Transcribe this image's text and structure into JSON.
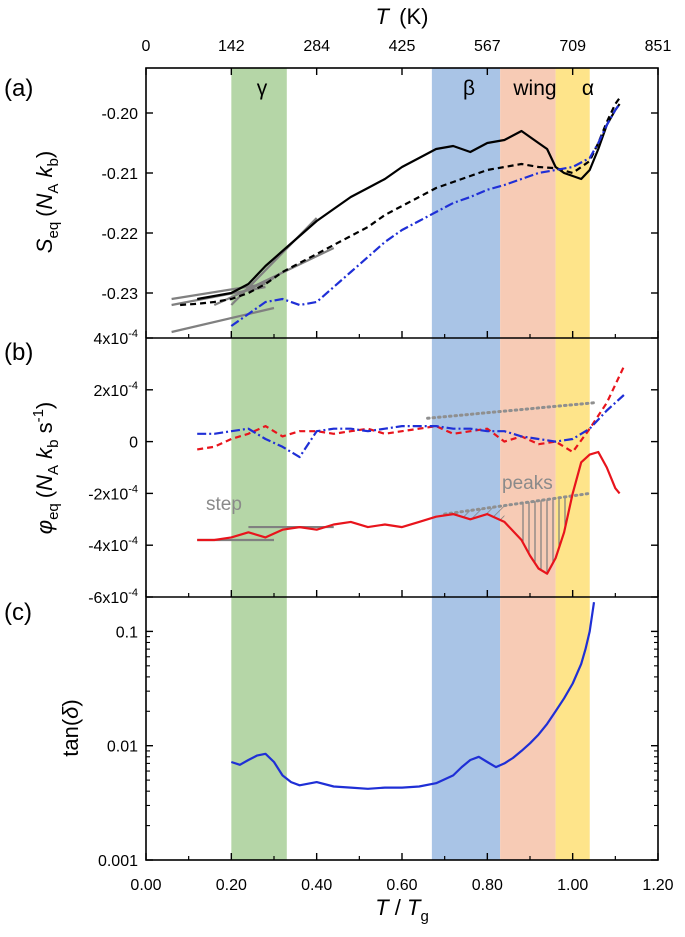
{
  "chart_data": {
    "type": "line",
    "shared_x": {
      "label_main": "T",
      "label_sep": " / ",
      "label_sub_main": "T",
      "label_sub": "g",
      "range": [
        0.0,
        1.2
      ],
      "ticks": [
        0.0,
        0.2,
        0.4,
        0.6,
        0.8,
        1.0,
        1.2
      ],
      "tick_labels": [
        "0.00",
        "0.20",
        "0.40",
        "0.60",
        "0.80",
        "1.00",
        "1.20"
      ]
    },
    "top_axis": {
      "label": "T",
      "unit": "(K)",
      "tick_values": [
        0.0,
        0.2,
        0.4,
        0.6,
        0.8,
        1.0,
        1.2
      ],
      "tick_labels": [
        "0",
        "142",
        "284",
        "425",
        "567",
        "709",
        "851"
      ]
    },
    "bands": [
      {
        "name": "gamma",
        "label": "γ",
        "from": 0.2,
        "to": 0.33,
        "color": "#b5d6a7"
      },
      {
        "name": "beta",
        "label": "β",
        "from": 0.67,
        "to": 0.83,
        "color": "#a9c4e6"
      },
      {
        "name": "wing",
        "label": "wing",
        "from": 0.83,
        "to": 0.96,
        "color": "#f7cbb5"
      },
      {
        "name": "alpha",
        "label": "α",
        "from": 0.96,
        "to": 1.04,
        "color": "#fee48a"
      }
    ],
    "panels": [
      {
        "id": "a",
        "label": "(a)",
        "ylabel": {
          "main": "S",
          "sub": "eq",
          "units": [
            "(",
            "N",
            "A",
            " k",
            "b",
            ")"
          ]
        },
        "ylim": [
          -0.2375,
          -0.1925
        ],
        "yticks": [
          -0.23,
          -0.22,
          -0.21,
          -0.2
        ],
        "ytick_labels": [
          "-0.23",
          "-0.22",
          "-0.21",
          "-0.20"
        ],
        "series": [
          {
            "name": "solid black",
            "color": "#000000",
            "style": "solid",
            "x": [
              0.12,
              0.16,
              0.2,
              0.24,
              0.28,
              0.32,
              0.36,
              0.4,
              0.44,
              0.48,
              0.52,
              0.56,
              0.6,
              0.64,
              0.68,
              0.72,
              0.76,
              0.8,
              0.84,
              0.88,
              0.9,
              0.92,
              0.94,
              0.96,
              0.98,
              1.0,
              1.02,
              1.04,
              1.06,
              1.08,
              1.1,
              1.11
            ],
            "y": [
              -0.231,
              -0.2305,
              -0.23,
              -0.2285,
              -0.2255,
              -0.223,
              -0.2205,
              -0.218,
              -0.216,
              -0.214,
              -0.2125,
              -0.211,
              -0.209,
              -0.2075,
              -0.206,
              -0.2055,
              -0.2065,
              -0.205,
              -0.2045,
              -0.203,
              -0.204,
              -0.205,
              -0.206,
              -0.209,
              -0.21,
              -0.2105,
              -0.211,
              -0.2095,
              -0.206,
              -0.202,
              -0.1995,
              -0.1985
            ]
          },
          {
            "name": "dashed black",
            "color": "#000000",
            "style": "dashed",
            "x": [
              0.08,
              0.12,
              0.16,
              0.2,
              0.24,
              0.28,
              0.32,
              0.36,
              0.4,
              0.44,
              0.48,
              0.52,
              0.56,
              0.6,
              0.64,
              0.68,
              0.72,
              0.76,
              0.8,
              0.84,
              0.88,
              0.92,
              0.96,
              1.0,
              1.04,
              1.06,
              1.08,
              1.1,
              1.11
            ],
            "y": [
              -0.232,
              -0.2318,
              -0.2315,
              -0.231,
              -0.23,
              -0.2285,
              -0.2265,
              -0.225,
              -0.2235,
              -0.222,
              -0.2205,
              -0.219,
              -0.217,
              -0.2155,
              -0.214,
              -0.2125,
              -0.2115,
              -0.2105,
              -0.2095,
              -0.209,
              -0.2085,
              -0.209,
              -0.2092,
              -0.21,
              -0.208,
              -0.205,
              -0.2015,
              -0.1985,
              -0.1975
            ]
          },
          {
            "name": "dash-dot blue",
            "color": "#1f2fd6",
            "style": "dashdot",
            "x": [
              0.2,
              0.24,
              0.28,
              0.32,
              0.36,
              0.4,
              0.44,
              0.48,
              0.52,
              0.56,
              0.6,
              0.64,
              0.68,
              0.72,
              0.76,
              0.8,
              0.84,
              0.88,
              0.92,
              0.96,
              1.0,
              1.04,
              1.06,
              1.08,
              1.1,
              1.11
            ],
            "y": [
              -0.2355,
              -0.2335,
              -0.2315,
              -0.231,
              -0.232,
              -0.2315,
              -0.229,
              -0.2265,
              -0.224,
              -0.2215,
              -0.2195,
              -0.218,
              -0.2165,
              -0.215,
              -0.214,
              -0.2128,
              -0.212,
              -0.211,
              -0.21,
              -0.2095,
              -0.209,
              -0.2075,
              -0.205,
              -0.202,
              -0.1995,
              -0.1985
            ]
          }
        ],
        "guide_lines": [
          {
            "x": [
              0.06,
              0.28
            ],
            "y": [
              -0.231,
              -0.2285
            ]
          },
          {
            "x": [
              0.06,
              0.28
            ],
            "y": [
              -0.232,
              -0.229
            ]
          },
          {
            "x": [
              0.06,
              0.3
            ],
            "y": [
              -0.2365,
              -0.2325
            ]
          },
          {
            "x": [
              0.16,
              0.3
            ],
            "y": [
              -0.232,
              -0.2275
            ]
          },
          {
            "x": [
              0.22,
              0.44
            ],
            "y": [
              -0.23,
              -0.2225
            ]
          },
          {
            "x": [
              0.2,
              0.4
            ],
            "y": [
              -0.232,
              -0.2175
            ]
          }
        ]
      },
      {
        "id": "b",
        "label": "(b)",
        "ylabel": {
          "main": "φ",
          "sub": "eq",
          "units": [
            "(",
            "N",
            "A",
            " k",
            "b",
            " s",
            "-1",
            ")"
          ]
        },
        "ylim": [
          -0.0006,
          0.0004
        ],
        "yticks": [
          -0.0006,
          -0.0004,
          -0.0002,
          0.0,
          0.0002,
          0.0004
        ],
        "ytick_labels": [
          [
            "-6x10",
            "-4"
          ],
          [
            "-4x10",
            "-4"
          ],
          [
            "-2x10",
            "-4"
          ],
          [
            "0",
            ""
          ],
          [
            "2x10",
            "-4"
          ],
          [
            "4x10",
            "-4"
          ]
        ],
        "series": [
          {
            "name": "dashed red",
            "color": "#e8141c",
            "style": "dashed",
            "x": [
              0.12,
              0.16,
              0.2,
              0.24,
              0.28,
              0.32,
              0.36,
              0.4,
              0.44,
              0.48,
              0.52,
              0.56,
              0.6,
              0.64,
              0.68,
              0.72,
              0.76,
              0.8,
              0.84,
              0.88,
              0.92,
              0.96,
              1.0,
              1.04,
              1.08,
              1.12
            ],
            "y": [
              -3e-05,
              -2e-05,
              1e-05,
              3e-05,
              6e-05,
              2e-05,
              4e-05,
              4e-05,
              3e-05,
              4e-05,
              5e-05,
              3e-05,
              4e-05,
              5e-05,
              6e-05,
              3e-05,
              4e-05,
              5e-05,
              0.0,
              2e-05,
              -1e-05,
              0.0,
              -4e-05,
              5e-05,
              0.00015,
              0.00029
            ]
          },
          {
            "name": "dash-dot blue",
            "color": "#1f2fd6",
            "style": "dashdot",
            "x": [
              0.12,
              0.16,
              0.2,
              0.24,
              0.28,
              0.32,
              0.36,
              0.4,
              0.44,
              0.48,
              0.52,
              0.56,
              0.6,
              0.64,
              0.68,
              0.72,
              0.76,
              0.8,
              0.84,
              0.88,
              0.92,
              0.96,
              1.0,
              1.04,
              1.08,
              1.12
            ],
            "y": [
              3e-05,
              3e-05,
              4e-05,
              5e-05,
              1e-05,
              -2e-05,
              -6e-05,
              4e-05,
              5e-05,
              5e-05,
              4e-05,
              5e-05,
              6e-05,
              6e-05,
              6e-05,
              5e-05,
              5e-05,
              4e-05,
              4e-05,
              2e-05,
              1e-05,
              0.0,
              1e-05,
              5e-05,
              0.00012,
              0.00018
            ]
          },
          {
            "name": "solid red",
            "color": "#e8141c",
            "style": "solid",
            "x": [
              0.12,
              0.16,
              0.2,
              0.24,
              0.28,
              0.32,
              0.36,
              0.4,
              0.44,
              0.48,
              0.52,
              0.56,
              0.6,
              0.64,
              0.68,
              0.72,
              0.76,
              0.8,
              0.84,
              0.88,
              0.9,
              0.92,
              0.94,
              0.96,
              0.98,
              1.0,
              1.02,
              1.04,
              1.06,
              1.08,
              1.1,
              1.11
            ],
            "y": [
              -0.00038,
              -0.00038,
              -0.00037,
              -0.00035,
              -0.00037,
              -0.00034,
              -0.00033,
              -0.00034,
              -0.00032,
              -0.00031,
              -0.00033,
              -0.00032,
              -0.00033,
              -0.00031,
              -0.00029,
              -0.00028,
              -0.0003,
              -0.00028,
              -0.00031,
              -0.00038,
              -0.00044,
              -0.00049,
              -0.00051,
              -0.00045,
              -0.00035,
              -0.0002,
              -8e-05,
              -5e-05,
              -4e-05,
              -0.0001,
              -0.00018,
              -0.0002
            ]
          }
        ],
        "dotted_baselines": [
          {
            "x": [
              0.66,
              1.05
            ],
            "y": [
              9e-05,
              0.00015
            ]
          },
          {
            "x": [
              0.7,
              1.04
            ],
            "y": [
              -0.00028,
              -0.0002
            ]
          }
        ],
        "guide_lines": [
          {
            "x": [
              0.12,
              0.3
            ],
            "y": [
              -0.00038,
              -0.00038
            ]
          },
          {
            "x": [
              0.24,
              0.44
            ],
            "y": [
              -0.00033,
              -0.00033
            ]
          }
        ],
        "annotations": [
          {
            "text": "step",
            "x": 0.14,
            "y": -0.00027
          },
          {
            "text": "peaks",
            "x": 0.8,
            "y": -0.00018
          }
        ]
      },
      {
        "id": "c",
        "label": "(c)",
        "ylabel": {
          "main": "tan(",
          "italic": "δ",
          "close": ")"
        },
        "yscale": "log",
        "ylim": [
          0.001,
          0.2
        ],
        "yticks": [
          0.001,
          0.01,
          0.1
        ],
        "ytick_labels": [
          "0.001",
          "0.01",
          "0.1"
        ],
        "series": [
          {
            "name": "solid blue",
            "color": "#1f2fd6",
            "style": "solid",
            "x": [
              0.2,
              0.22,
              0.24,
              0.26,
              0.28,
              0.3,
              0.32,
              0.34,
              0.36,
              0.4,
              0.44,
              0.48,
              0.52,
              0.56,
              0.6,
              0.64,
              0.68,
              0.72,
              0.74,
              0.76,
              0.78,
              0.8,
              0.82,
              0.84,
              0.86,
              0.88,
              0.9,
              0.92,
              0.94,
              0.96,
              0.98,
              1.0,
              1.02,
              1.03,
              1.04,
              1.05
            ],
            "y": [
              0.0072,
              0.0068,
              0.0075,
              0.0082,
              0.0085,
              0.0072,
              0.0055,
              0.0048,
              0.0045,
              0.0048,
              0.0044,
              0.0043,
              0.0042,
              0.0043,
              0.0043,
              0.0044,
              0.0047,
              0.0055,
              0.0065,
              0.0075,
              0.008,
              0.0072,
              0.0065,
              0.007,
              0.0078,
              0.009,
              0.0105,
              0.0125,
              0.0155,
              0.02,
              0.026,
              0.035,
              0.052,
              0.07,
              0.1,
              0.18
            ]
          }
        ]
      }
    ]
  }
}
